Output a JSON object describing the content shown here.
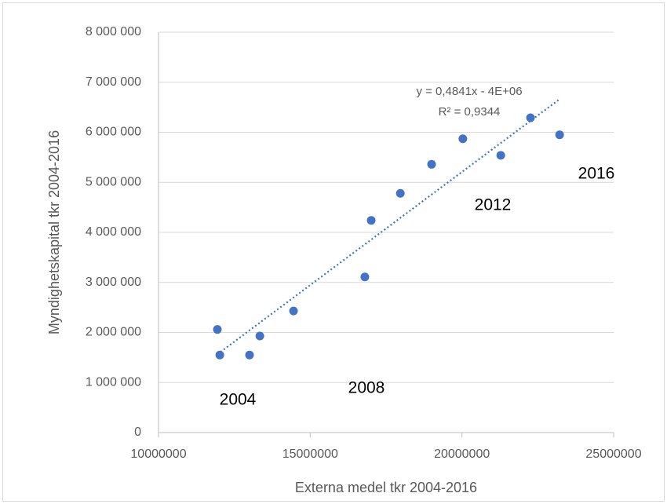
{
  "chart_data": {
    "type": "scatter",
    "x_label": "Externa medel tkr 2004-2016",
    "y_label": "Myndighetskapital tkr 2004-2016",
    "color": "#4472c4",
    "grid": true,
    "x": [
      11940000,
      12020000,
      13000000,
      13340000,
      14450000,
      16800000,
      17010000,
      17970000,
      19000000,
      20030000,
      21280000,
      22260000,
      23220000
    ],
    "values": [
      2060000,
      1550000,
      1550000,
      1930000,
      2430000,
      3110000,
      4240000,
      4780000,
      5360000,
      5870000,
      5540000,
      6290000,
      5950000
    ],
    "xlim": [
      10000000,
      25000000
    ],
    "xticks": [
      10000000,
      15000000,
      20000000,
      25000000
    ],
    "ylim": [
      0,
      8000000
    ],
    "yticks": [
      0,
      {
        "value": 1000000,
        "label": "1 000 000"
      },
      {
        "value": 2000000,
        "label": "2 000 000"
      },
      {
        "value": 3000000,
        "label": "3 000 000"
      },
      {
        "value": 4000000,
        "label": "4 000 000"
      },
      {
        "value": 5000000,
        "label": "5 000 000"
      },
      {
        "value": 6000000,
        "label": "6 000 000"
      },
      {
        "value": 7000000,
        "label": "7 000 000"
      },
      {
        "value": 8000000,
        "label": "8 000 000"
      }
    ],
    "trendline": {
      "equation": "y = 0,4841x - 4E+06",
      "r2": "R² = 0,9344"
    },
    "annotations": [
      "2004",
      "2008",
      "2012",
      "2016"
    ]
  }
}
